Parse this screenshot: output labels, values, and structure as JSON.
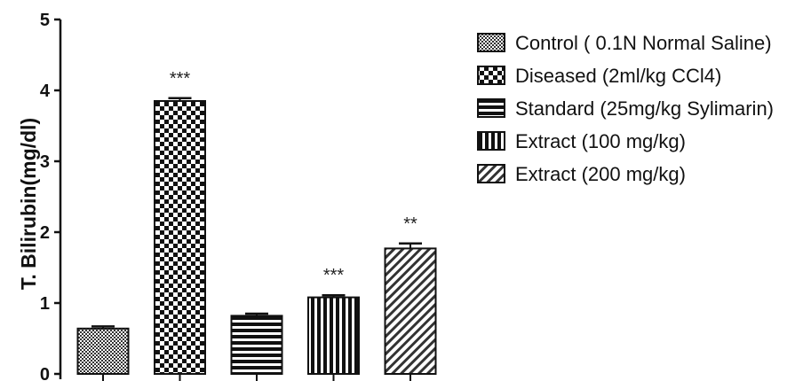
{
  "chart_data": {
    "type": "bar",
    "title": "",
    "xlabel": "",
    "ylabel": "T. Bilirubin(mg/dl)",
    "ylim": [
      0,
      5
    ],
    "yticks": [
      0,
      1,
      2,
      3,
      4,
      5
    ],
    "grid": false,
    "legend_position": "right",
    "series": [
      {
        "name": "Control ( 0.1N Normal Saline)",
        "value": 0.64,
        "error": 0.03,
        "significance": "",
        "pattern": "fine-check"
      },
      {
        "name": "Diseased (2ml/kg CCl4)",
        "value": 3.85,
        "error": 0.04,
        "significance": "***",
        "pattern": "checker"
      },
      {
        "name": "Standard (25mg/kg Sylimarin)",
        "value": 0.82,
        "error": 0.03,
        "significance": "",
        "pattern": "horizontal-stripes"
      },
      {
        "name": "Extract (100 mg/kg)",
        "value": 1.08,
        "error": 0.03,
        "significance": "***",
        "pattern": "vertical-stripes"
      },
      {
        "name": "Extract (200 mg/kg)",
        "value": 1.77,
        "error": 0.07,
        "significance": "**",
        "pattern": "diagonal-stripes"
      }
    ]
  }
}
